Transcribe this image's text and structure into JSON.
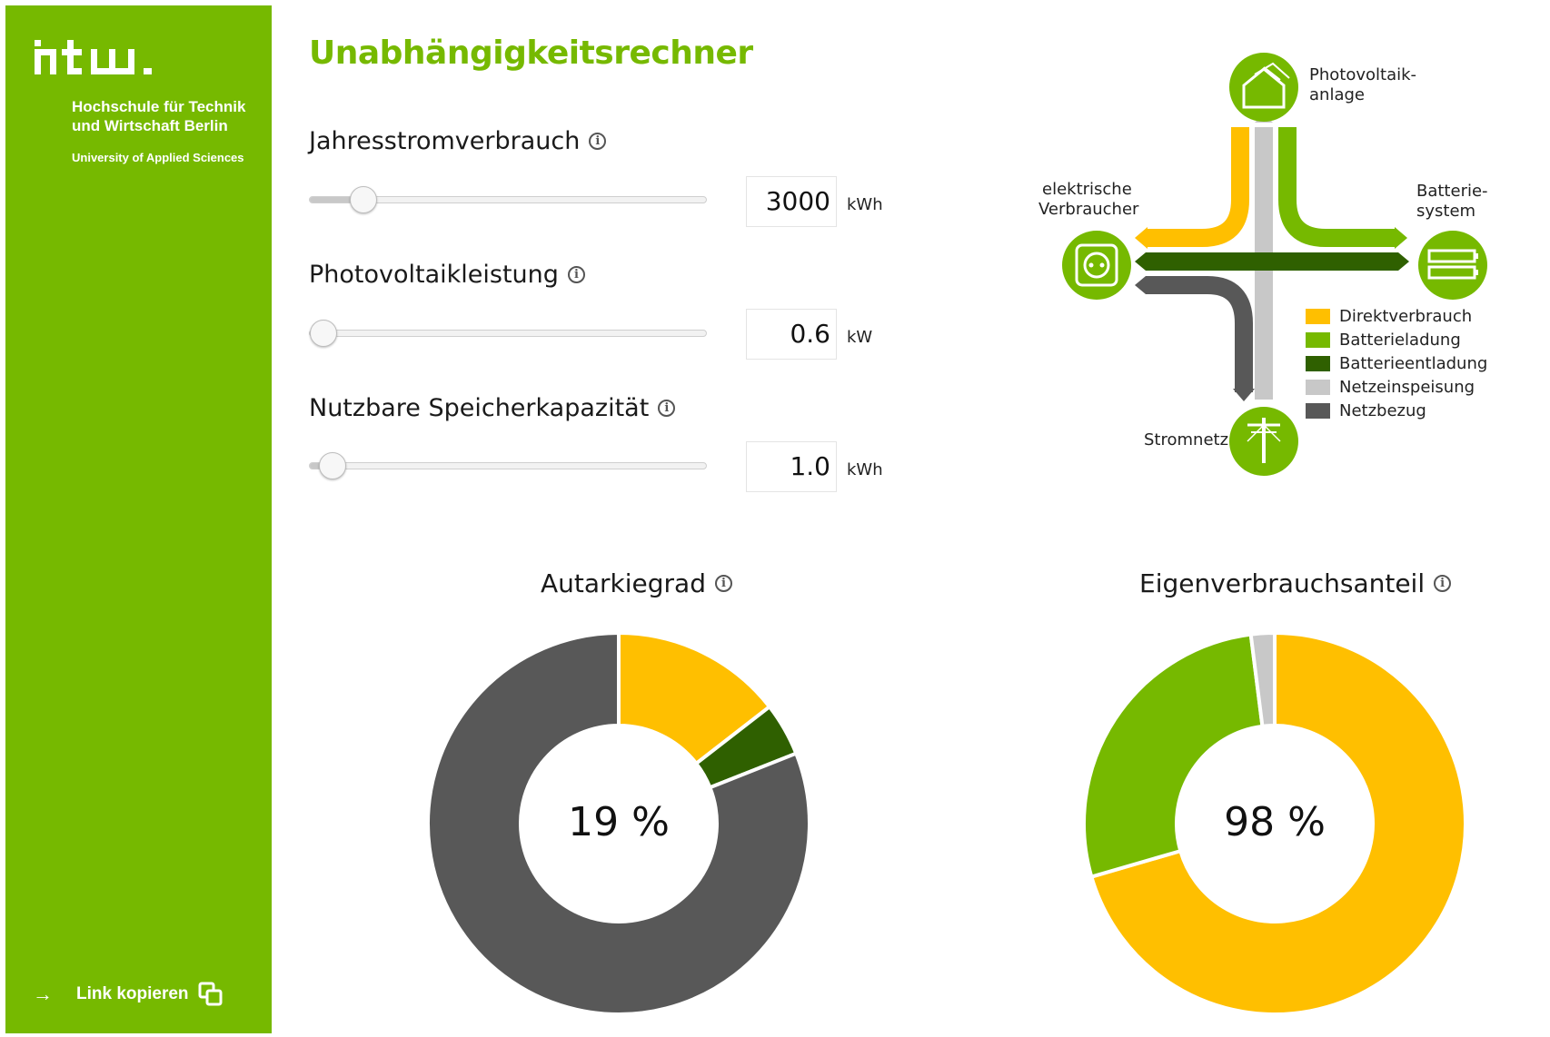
{
  "sidebar": {
    "brand_name": "htw.",
    "brand_line1": "Hochschule für Technik",
    "brand_line2": "und Wirtschaft Berlin",
    "brand_line3": "University of Applied Sciences",
    "link_copy_label": "Link kopieren",
    "color": "#76b900"
  },
  "main": {
    "title": "Unabhängigkeitsrechner",
    "params": [
      {
        "label": "Jahresstromverbrauch",
        "value": "3000",
        "unit": "kWh",
        "slider_fraction": 0.13
      },
      {
        "label": "Photovoltaikleistung",
        "value": "0.6",
        "unit": "kW",
        "slider_fraction": 0.0
      },
      {
        "label": "Nutzbare Speicherkapazität",
        "value": "1.0",
        "unit": "kWh",
        "slider_fraction": 0.05
      }
    ]
  },
  "flow": {
    "pv_label1": "Photovoltaik-",
    "pv_label2": "anlage",
    "consumer_label1": "elektrische",
    "consumer_label2": "Verbraucher",
    "battery_label1": "Batterie-",
    "battery_label2": "system",
    "grid_label": "Stromnetz",
    "legend": [
      {
        "label": "Direktverbrauch",
        "color": "#ffbf00"
      },
      {
        "label": "Batterieladung",
        "color": "#76b900"
      },
      {
        "label": "Batterieentladung",
        "color": "#2f6000"
      },
      {
        "label": "Netzeinspeisung",
        "color": "#c8c8c8"
      },
      {
        "label": "Netzbezug",
        "color": "#585858"
      }
    ],
    "icons": {
      "pv": "house-solar-icon",
      "consumer": "power-socket-icon",
      "battery": "battery-icon",
      "grid": "power-pole-icon"
    }
  },
  "chart_data": [
    {
      "type": "pie",
      "title": "Autarkiegrad",
      "center_label": "19 %",
      "categories": [
        "Direktverbrauch",
        "Batterieentladung",
        "Netzbezug"
      ],
      "values": [
        14.5,
        4.5,
        81
      ],
      "colors": [
        "#ffbf00",
        "#2f6000",
        "#585858"
      ]
    },
    {
      "type": "pie",
      "title": "Eigenverbrauchsanteil",
      "center_label": "98 %",
      "categories": [
        "Direktverbrauch",
        "Batterieladung",
        "Netzeinspeisung"
      ],
      "values": [
        70.5,
        27.5,
        2
      ],
      "colors": [
        "#ffbf00",
        "#76b900",
        "#c8c8c8"
      ]
    }
  ]
}
